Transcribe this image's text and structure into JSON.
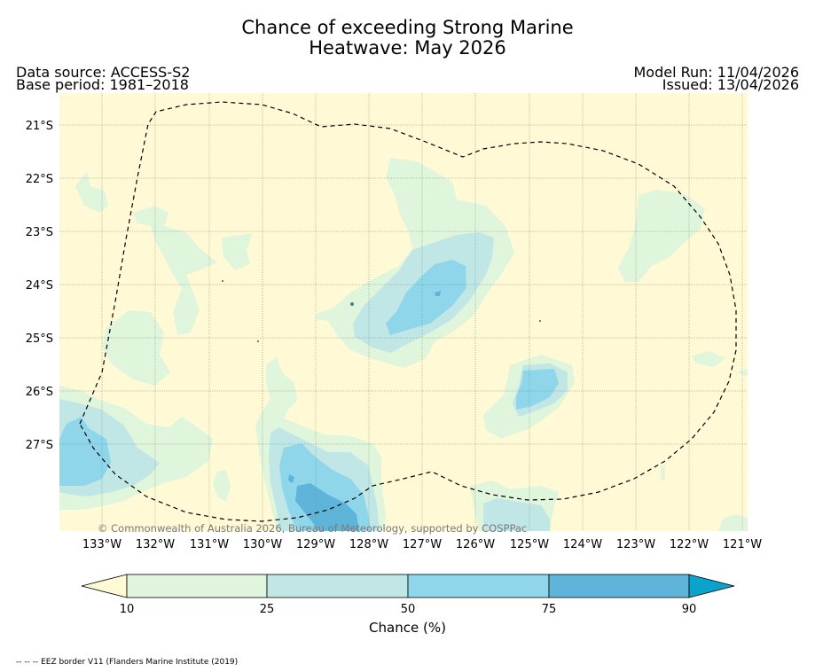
{
  "title_line1": "Chance of exceeding Strong Marine",
  "title_line2": "Heatwave: May 2026",
  "data_source": "Data source: ACCESS-S2",
  "base_period": "Base period: 1981–2018",
  "model_run": "Model Run: 11/04/2026",
  "issued": "Issued: 13/04/2026",
  "copyright": "© Commonwealth of Australia 2026, Bureau of Meteorology, supported by COSPPac",
  "lat_labels": [
    "21°S",
    "22°S",
    "23°S",
    "24°S",
    "25°S",
    "26°S",
    "27°S"
  ],
  "lon_labels": [
    "133°W",
    "132°W",
    "131°W",
    "130°W",
    "129°W",
    "128°W",
    "127°W",
    "126°W",
    "125°W",
    "124°W",
    "123°W",
    "122°W",
    "121°W"
  ],
  "colorbar": {
    "label": "Chance (%)",
    "ticks": [
      "10",
      "25",
      "50",
      "75",
      "90"
    ],
    "colors": [
      "#fffad5",
      "#dff5dc",
      "#c1e6e6",
      "#8fd6eb",
      "#5eb5d9",
      "#0ba3cc"
    ]
  },
  "legend_note": "-- -- -- EEZ border V11 (Flanders Marine Institute (2019)",
  "colors": {
    "background": "#fffad5",
    "level_10_25": "#dff5dc",
    "level_25_50": "#c1e6e6",
    "level_50_75": "#8fd6eb",
    "level_75_90": "#5eb5d9"
  }
}
